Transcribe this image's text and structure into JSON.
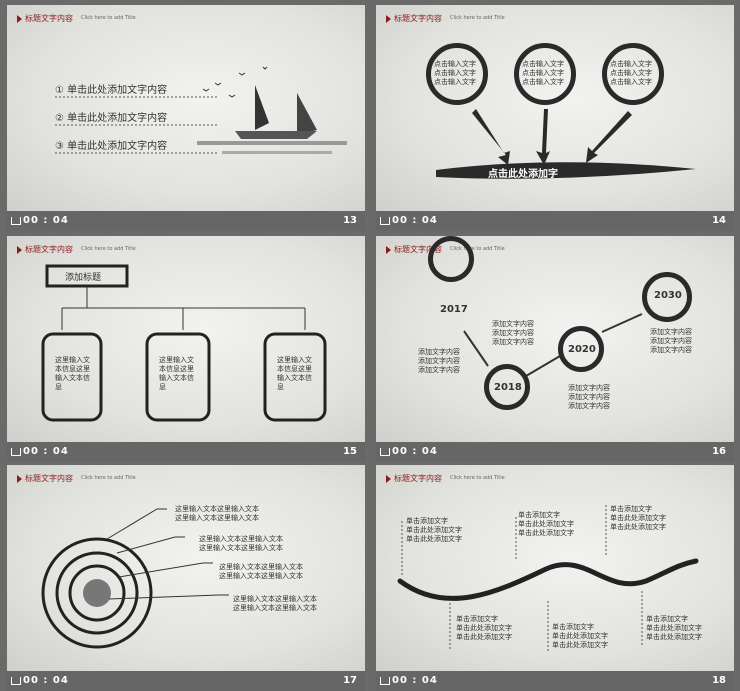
{
  "header": {
    "title": "标题文字内容",
    "subtitle": "Click here to add Title"
  },
  "footer_time": "00 : 04",
  "slides": [
    {
      "number": "13",
      "items": [
        "① 单击此处添加文字内容",
        "② 单击此处添加文字内容",
        "③ 单击此处添加文字内容"
      ]
    },
    {
      "number": "14",
      "circles": [
        "点击输入文字\n点击输入文字\n点击输入文字",
        "点击输入文字\n点击输入文字\n点击输入文字",
        "点击输入文字\n点击输入文字\n点击输入文字"
      ],
      "banner": "点击此处添加字"
    },
    {
      "number": "15",
      "title_box": "添加标题",
      "boxes": [
        "这里输入文\n本信息这里\n输入文本信\n息",
        "这里输入文\n本信息这里\n输入文本信\n息",
        "这里输入文\n本信息这里\n输入文本信\n息"
      ]
    },
    {
      "number": "16",
      "years": [
        "2017",
        "2018",
        "2020",
        "2030"
      ],
      "texts": [
        "添加文字内容\n添加文字内容\n添加文字内容",
        "添加文字内容\n添加文字内容\n添加文字内容",
        "添加文字内容\n添加文字内容\n添加文字内容",
        "添加文字内容\n添加文字内容\n添加文字内容"
      ]
    },
    {
      "number": "17",
      "lines": [
        "这里输入文本这里输入文本\n这里输入文本这里输入文本",
        "这里输入文本这里输入文本\n这里输入文本这里输入文本",
        "这里输入文本这里输入文本\n这里输入文本这里输入文本",
        "这里输入文本这里输入文本\n这里输入文本这里输入文本"
      ]
    },
    {
      "number": "18",
      "top": [
        "单击添加文字\n单击此处添加文字\n单击此处添加文字",
        "单击添加文字\n单击此处添加文字\n单击此处添加文字",
        "单击添加文字\n单击此处添加文字\n单击此处添加文字"
      ],
      "bottom": [
        "单击添加文字\n单击此处添加文字\n单击此处添加文字",
        "单击添加文字\n单击此处添加文字\n单击此处添加文字",
        "单击添加文字\n单击此处添加文字\n单击此处添加文字"
      ]
    }
  ]
}
